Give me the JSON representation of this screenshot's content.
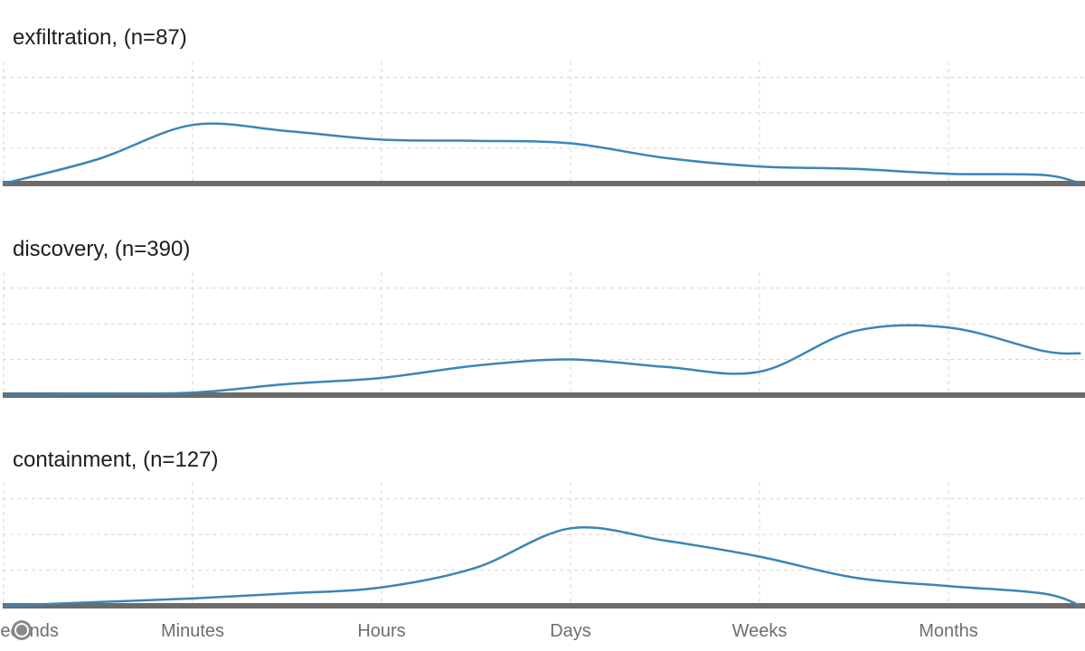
{
  "chart_data": {
    "type": "line",
    "x_labels": [
      "Seconds",
      "Minutes",
      "Hours",
      "Days",
      "Weeks",
      "Months"
    ],
    "ylim": [
      0,
      1
    ],
    "grid": true,
    "line_color": "#3a85b7",
    "baseline_color": "#6b6b6b",
    "panels": [
      {
        "title": "exfiltration, (n=87)",
        "series": [
          {
            "x": 0.0,
            "y": 0.0
          },
          {
            "x": 0.5,
            "y": 0.2
          },
          {
            "x": 1.0,
            "y": 0.48
          },
          {
            "x": 1.5,
            "y": 0.43
          },
          {
            "x": 2.0,
            "y": 0.36
          },
          {
            "x": 2.5,
            "y": 0.35
          },
          {
            "x": 3.0,
            "y": 0.33
          },
          {
            "x": 3.5,
            "y": 0.21
          },
          {
            "x": 4.0,
            "y": 0.14
          },
          {
            "x": 4.5,
            "y": 0.12
          },
          {
            "x": 5.0,
            "y": 0.08
          },
          {
            "x": 5.5,
            "y": 0.07
          },
          {
            "x": 5.7,
            "y": 0.0
          }
        ]
      },
      {
        "title": "discovery, (n=390)",
        "series": [
          {
            "x": 0.0,
            "y": 0.0
          },
          {
            "x": 0.5,
            "y": 0.01
          },
          {
            "x": 1.0,
            "y": 0.02
          },
          {
            "x": 1.5,
            "y": 0.09
          },
          {
            "x": 2.0,
            "y": 0.14
          },
          {
            "x": 2.5,
            "y": 0.24
          },
          {
            "x": 3.0,
            "y": 0.29
          },
          {
            "x": 3.5,
            "y": 0.23
          },
          {
            "x": 4.0,
            "y": 0.19
          },
          {
            "x": 4.5,
            "y": 0.52
          },
          {
            "x": 5.0,
            "y": 0.55
          },
          {
            "x": 5.5,
            "y": 0.36
          },
          {
            "x": 5.7,
            "y": 0.34
          }
        ]
      },
      {
        "title": "containment, (n=127)",
        "series": [
          {
            "x": 0.0,
            "y": 0.0
          },
          {
            "x": 0.5,
            "y": 0.03
          },
          {
            "x": 1.0,
            "y": 0.06
          },
          {
            "x": 1.5,
            "y": 0.1
          },
          {
            "x": 2.0,
            "y": 0.15
          },
          {
            "x": 2.5,
            "y": 0.31
          },
          {
            "x": 3.0,
            "y": 0.63
          },
          {
            "x": 3.5,
            "y": 0.53
          },
          {
            "x": 4.0,
            "y": 0.4
          },
          {
            "x": 4.5,
            "y": 0.23
          },
          {
            "x": 5.0,
            "y": 0.16
          },
          {
            "x": 5.5,
            "y": 0.1
          },
          {
            "x": 5.7,
            "y": 0.0
          }
        ]
      }
    ]
  }
}
